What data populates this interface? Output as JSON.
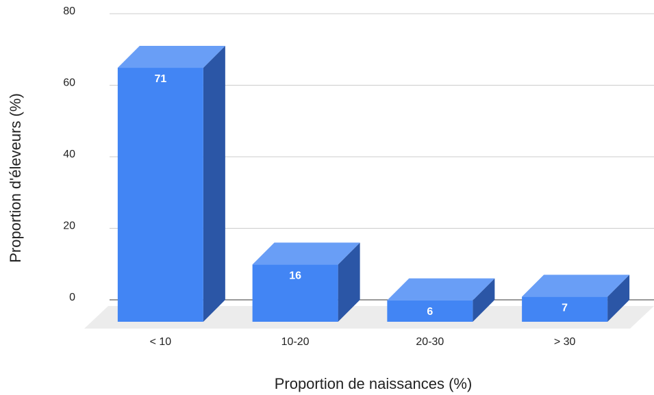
{
  "chart_data": {
    "type": "bar3d",
    "categories": [
      "< 10",
      "10-20",
      "20-30",
      "> 30"
    ],
    "values": [
      71,
      16,
      6,
      7
    ],
    "xlabel": "Proportion de naissances (%)",
    "ylabel": "Proportion d'éleveurs (%)",
    "ylim": [
      0,
      80
    ],
    "yticks": [
      0,
      20,
      40,
      60,
      80
    ],
    "colors": {
      "front": "#4285f4",
      "top": "#699ef6",
      "side": "#2b56a6"
    },
    "grid": true
  }
}
